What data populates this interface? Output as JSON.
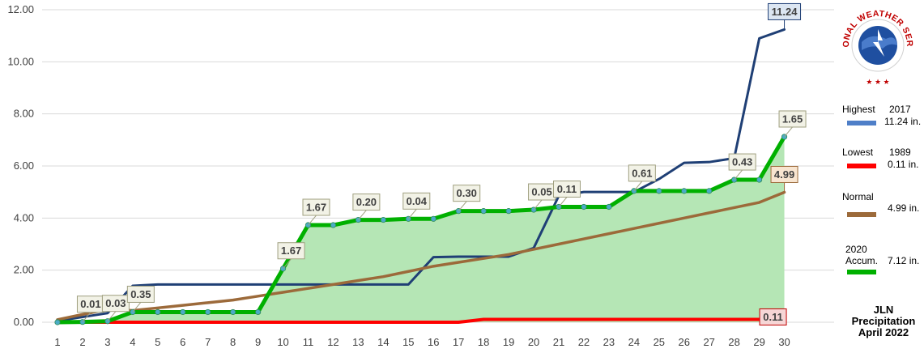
{
  "chart_data": {
    "type": "line",
    "x": [
      1,
      2,
      3,
      4,
      5,
      6,
      7,
      8,
      9,
      10,
      11,
      12,
      13,
      14,
      15,
      16,
      17,
      18,
      19,
      20,
      21,
      22,
      23,
      24,
      25,
      26,
      27,
      28,
      29,
      30
    ],
    "ylim": [
      0,
      12
    ],
    "yticks": [
      "0.00",
      "2.00",
      "4.00",
      "6.00",
      "8.00",
      "10.00",
      "12.00"
    ],
    "ytick_values": [
      0,
      2,
      4,
      6,
      8,
      10,
      12
    ],
    "grid": true,
    "legend_position": "right",
    "series": [
      {
        "name": "Highest",
        "color": "#1F3F75",
        "values": [
          0.05,
          0.2,
          0.35,
          1.4,
          1.45,
          1.45,
          1.45,
          1.45,
          1.45,
          1.45,
          1.45,
          1.45,
          1.45,
          1.45,
          1.45,
          2.5,
          2.52,
          2.52,
          2.52,
          2.85,
          4.85,
          5.0,
          5.0,
          5.0,
          5.5,
          6.12,
          6.15,
          6.3,
          10.9,
          11.24
        ]
      },
      {
        "name": "Lowest",
        "color": "#FF0000",
        "values": [
          0.0,
          0.0,
          0.0,
          0.0,
          0.0,
          0.0,
          0.0,
          0.0,
          0.0,
          0.0,
          0.0,
          0.0,
          0.0,
          0.0,
          0.0,
          0.0,
          0.0,
          0.11,
          0.11,
          0.11,
          0.11,
          0.11,
          0.11,
          0.11,
          0.11,
          0.11,
          0.11,
          0.11,
          0.11,
          0.11
        ]
      },
      {
        "name": "Normal",
        "color": "#9C6A3A",
        "values": [
          0.1,
          0.3,
          0.5,
          0.45,
          0.55,
          0.65,
          0.75,
          0.85,
          1.0,
          1.15,
          1.3,
          1.45,
          1.6,
          1.75,
          1.95,
          2.15,
          2.3,
          2.45,
          2.6,
          2.8,
          3.0,
          3.2,
          3.4,
          3.6,
          3.8,
          4.0,
          4.2,
          4.4,
          4.6,
          4.99
        ]
      },
      {
        "name": "2020 Accum.",
        "color": "#00B000",
        "fill": "#B5E6B5",
        "values": [
          0.0,
          0.01,
          0.04,
          0.39,
          0.39,
          0.39,
          0.39,
          0.39,
          0.39,
          2.06,
          3.73,
          3.73,
          3.93,
          3.93,
          3.97,
          3.97,
          4.27,
          4.27,
          4.27,
          4.32,
          4.43,
          4.43,
          4.43,
          5.04,
          5.04,
          5.04,
          5.04,
          5.47,
          5.47,
          7.12
        ]
      }
    ],
    "data_labels": [
      {
        "x": 2,
        "series": "2020 Accum.",
        "text": "0.01"
      },
      {
        "x": 3,
        "series": "2020 Accum.",
        "text": "0.03"
      },
      {
        "x": 4,
        "series": "2020 Accum.",
        "text": "0.35"
      },
      {
        "x": 10,
        "series": "2020 Accum.",
        "text": "1.67"
      },
      {
        "x": 11,
        "series": "2020 Accum.",
        "text": "1.67"
      },
      {
        "x": 13,
        "series": "2020 Accum.",
        "text": "0.20"
      },
      {
        "x": 15,
        "series": "2020 Accum.",
        "text": "0.04"
      },
      {
        "x": 17,
        "series": "2020 Accum.",
        "text": "0.30"
      },
      {
        "x": 20,
        "series": "2020 Accum.",
        "text": "0.05"
      },
      {
        "x": 21,
        "series": "2020 Accum.",
        "text": "0.11"
      },
      {
        "x": 24,
        "series": "2020 Accum.",
        "text": "0.61"
      },
      {
        "x": 28,
        "series": "2020 Accum.",
        "text": "0.43"
      },
      {
        "x": 30,
        "series": "2020 Accum.",
        "text": "1.65"
      },
      {
        "x": 30,
        "series": "Highest",
        "text": "11.24"
      },
      {
        "x": 30,
        "series": "Normal",
        "text": "4.99"
      },
      {
        "x": 30,
        "series": "Lowest",
        "text": "0.11"
      }
    ]
  },
  "legend": {
    "highest": {
      "label": "Highest",
      "year": "2017",
      "amount": "11.24 in."
    },
    "lowest": {
      "label": "Lowest",
      "year": "1989",
      "amount": "0.11 in."
    },
    "normal": {
      "label": "Normal",
      "amount": "4.99 in."
    },
    "accum": {
      "label_line1": "2020",
      "label_line2": "Accum.",
      "amount": "7.12 in."
    }
  },
  "title": {
    "line1": "JLN",
    "line2": "Precipitation",
    "line3": "April 2022"
  },
  "logo": {
    "text": "NATIONAL WEATHER SERVICE",
    "icon": "nws-logo-icon"
  }
}
